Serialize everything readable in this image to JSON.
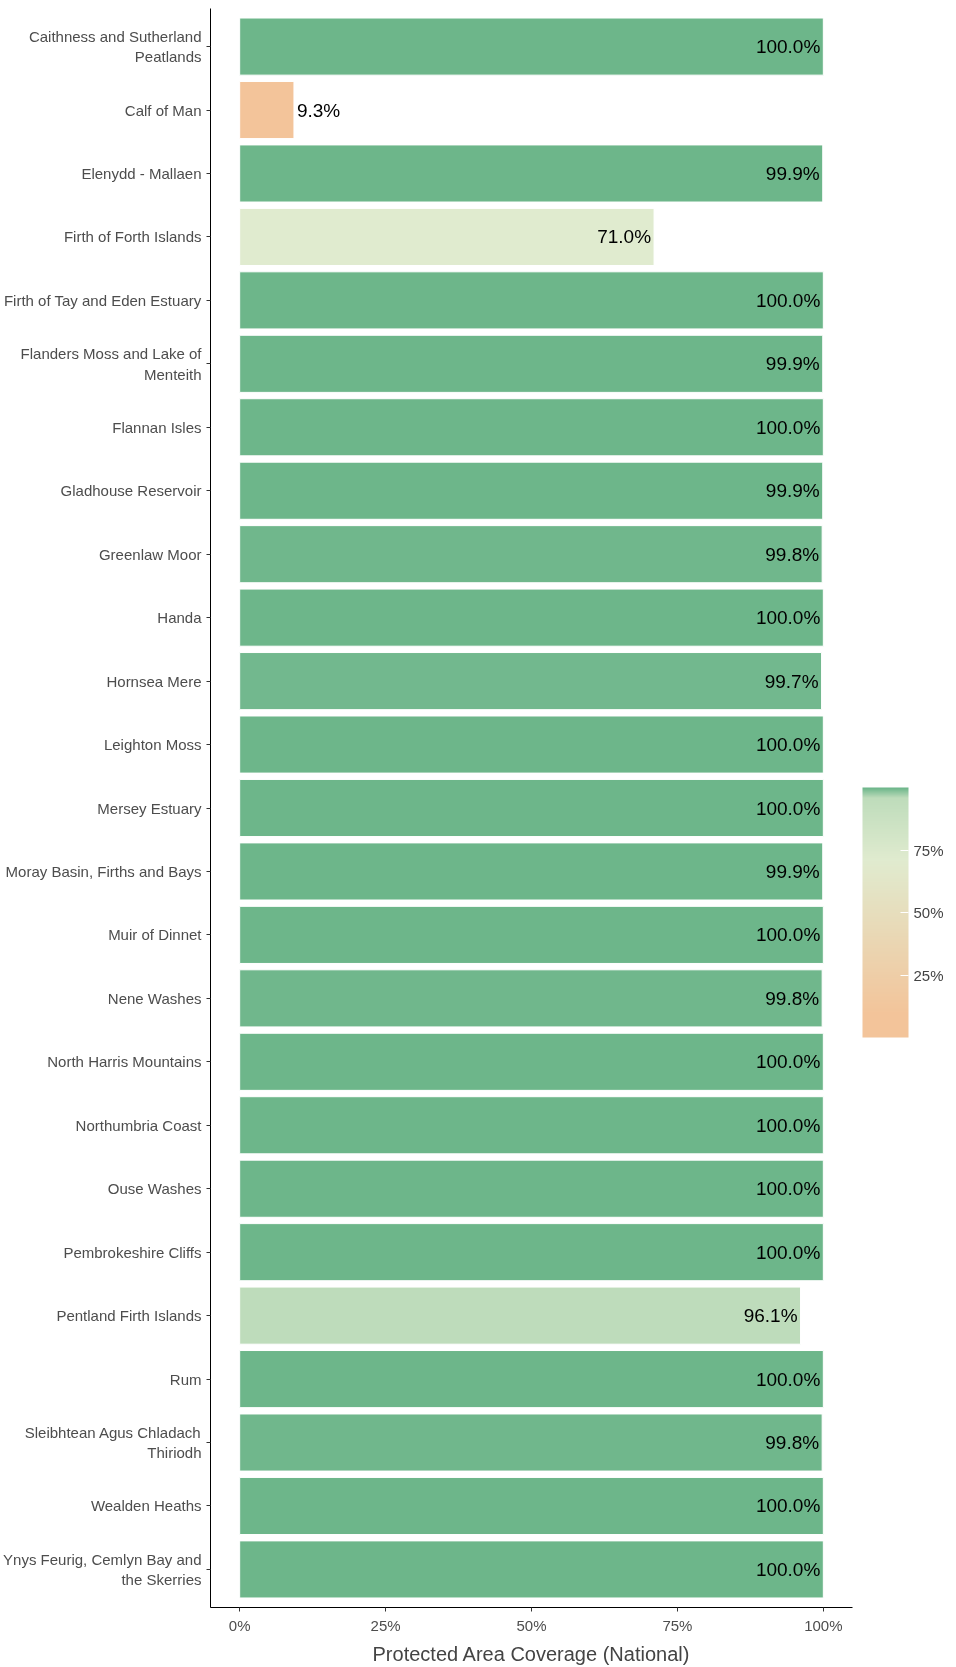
{
  "chart_data": {
    "type": "bar",
    "orientation": "horizontal",
    "xlabel": "Protected Area Coverage (National)",
    "categories": [
      "Caithness and Sutherland\nPeatlands",
      "Calf of Man",
      "Elenydd - Mallaen",
      "Firth of Forth Islands",
      "Firth of Tay and Eden Estuary",
      "Flanders Moss and Lake of\nMenteith",
      "Flannan Isles",
      "Gladhouse Reservoir",
      "Greenlaw Moor",
      "Handa",
      "Hornsea Mere",
      "Leighton Moss",
      "Mersey Estuary",
      "Moray Basin, Firths and Bays",
      "Muir of Dinnet",
      "Nene Washes",
      "North Harris Mountains",
      "Northumbria Coast",
      "Ouse Washes",
      "Pembrokeshire Cliffs",
      "Pentland Firth Islands",
      "Rum",
      "Sleibhtean Agus Chladach\nThiriodh",
      "Wealden Heaths",
      "Ynys Feurig, Cemlyn Bay and\nthe Skerries"
    ],
    "values": [
      100.0,
      9.3,
      99.9,
      71.0,
      100.0,
      99.9,
      100.0,
      99.9,
      99.8,
      100.0,
      99.7,
      100.0,
      100.0,
      99.9,
      100.0,
      99.8,
      100.0,
      100.0,
      100.0,
      100.0,
      96.1,
      100.0,
      99.8,
      100.0,
      100.0
    ],
    "value_labels": [
      "100.0%",
      "9.3%",
      "99.9%",
      "71.0%",
      "100.0%",
      "99.9%",
      "100.0%",
      "99.9%",
      "99.8%",
      "100.0%",
      "99.7%",
      "100.0%",
      "100.0%",
      "99.9%",
      "100.0%",
      "99.8%",
      "100.0%",
      "100.0%",
      "100.0%",
      "100.0%",
      "96.1%",
      "100.0%",
      "99.8%",
      "100.0%",
      "100.0%"
    ],
    "colors": [
      "#6db68a",
      "#f3c49a",
      "#6db68a",
      "#e0ebcf",
      "#6db68a",
      "#6db68a",
      "#6db68a",
      "#6db68a",
      "#70b78c",
      "#6db68a",
      "#72b88e",
      "#6db68a",
      "#6db68a",
      "#6db68a",
      "#6db68a",
      "#70b78c",
      "#6db68a",
      "#6db68a",
      "#6db68a",
      "#6db68a",
      "#bedcbb",
      "#6db68a",
      "#70b78c",
      "#6db68a",
      "#6db68a"
    ],
    "xlim": [
      -5,
      105
    ],
    "xticks": [
      {
        "value": 0,
        "label": "0%"
      },
      {
        "value": 25,
        "label": "25%"
      },
      {
        "value": 50,
        "label": "50%"
      },
      {
        "value": 75,
        "label": "75%"
      },
      {
        "value": 100,
        "label": "100%"
      }
    ],
    "clim": [
      0,
      100
    ],
    "cticks": [
      {
        "value": 25,
        "label": "25%"
      },
      {
        "value": 50,
        "label": "50%"
      },
      {
        "value": 75,
        "label": "75%"
      }
    ],
    "grid": false
  }
}
